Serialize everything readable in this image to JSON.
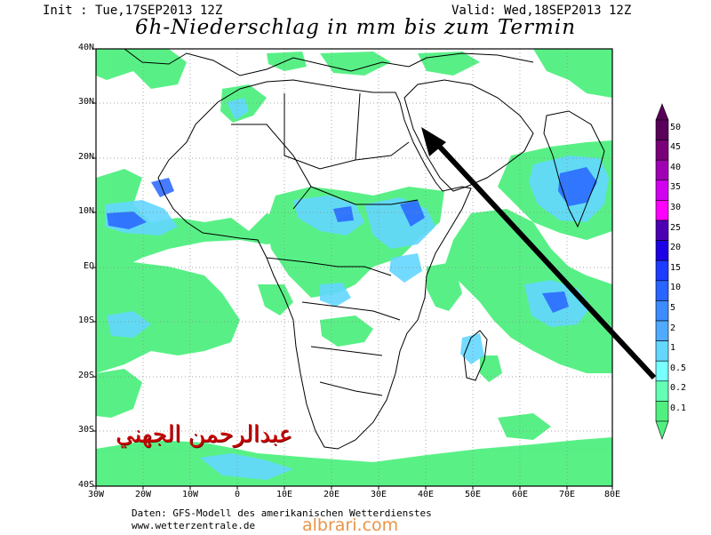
{
  "header": {
    "init": "Init : Tue,17SEP2013 12Z",
    "valid": "Valid: Wed,18SEP2013 12Z",
    "title": "6h-Niederschlag in mm bis zum Termin"
  },
  "axes": {
    "y_labels": [
      "40N",
      "30N",
      "20N",
      "10N",
      "EQ",
      "10S",
      "20S",
      "30S",
      "40S"
    ],
    "x_labels": [
      "30W",
      "20W",
      "10W",
      "0",
      "10E",
      "20E",
      "30E",
      "40E",
      "50E",
      "60E",
      "70E",
      "80E"
    ]
  },
  "legend": {
    "labels": [
      "50",
      "45",
      "40",
      "35",
      "30",
      "25",
      "20",
      "15",
      "10",
      "5",
      "2",
      "1",
      "0.5",
      "0.2",
      "0.1"
    ],
    "colors": [
      "#5a005a",
      "#7a007a",
      "#a000b4",
      "#d200f0",
      "#ff00ff",
      "#4b00b4",
      "#1e00e6",
      "#1e3cff",
      "#2864ff",
      "#3c8cff",
      "#50aaff",
      "#64d7ff",
      "#78ffff",
      "#64ffb4",
      "#50f080"
    ]
  },
  "annotation": {
    "arabic_name": "عبدالرحمن الجهني",
    "arrow": "black-arrow-pointing-to-red-sea"
  },
  "footer": {
    "source": "Daten: GFS-Modell des amerikanischen Wetterdienstes",
    "website": "www.wetterzentrale.de",
    "watermark": "albrari.com"
  }
}
